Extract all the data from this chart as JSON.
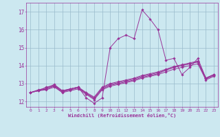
{
  "xlabel": "Windchill (Refroidissement éolien,°C)",
  "background_color": "#cce8f0",
  "grid_color": "#99bbcc",
  "line_color": "#993399",
  "xlim": [
    -0.5,
    23.5
  ],
  "ylim": [
    11.7,
    17.5
  ],
  "yticks": [
    12,
    13,
    14,
    15,
    16,
    17
  ],
  "xticks": [
    0,
    1,
    2,
    3,
    4,
    5,
    6,
    7,
    8,
    9,
    10,
    11,
    12,
    13,
    14,
    15,
    16,
    17,
    18,
    19,
    20,
    21,
    22,
    23
  ],
  "series": [
    {
      "x": [
        0,
        1,
        2,
        3,
        4,
        5,
        6,
        7,
        8,
        9,
        10,
        11,
        12,
        13,
        14,
        15,
        16,
        17,
        18,
        19,
        20,
        21,
        22,
        23
      ],
      "y": [
        12.5,
        12.6,
        12.8,
        12.9,
        12.5,
        12.7,
        12.8,
        12.2,
        11.9,
        12.2,
        15.0,
        15.5,
        15.7,
        15.5,
        17.1,
        16.6,
        16.0,
        14.3,
        14.4,
        13.5,
        13.9,
        14.4,
        13.3,
        13.5
      ]
    },
    {
      "x": [
        0,
        1,
        2,
        3,
        4,
        5,
        6,
        7,
        8,
        9,
        10,
        11,
        12,
        13,
        14,
        15,
        16,
        17,
        18,
        19,
        20,
        21,
        22,
        23
      ],
      "y": [
        12.5,
        12.6,
        12.7,
        12.85,
        12.55,
        12.65,
        12.75,
        12.45,
        12.2,
        12.7,
        12.9,
        13.0,
        13.1,
        13.2,
        13.35,
        13.45,
        13.55,
        13.75,
        13.9,
        14.0,
        14.1,
        14.2,
        13.25,
        13.45
      ]
    },
    {
      "x": [
        0,
        1,
        2,
        3,
        4,
        5,
        6,
        7,
        8,
        9,
        10,
        11,
        12,
        13,
        14,
        15,
        16,
        17,
        18,
        19,
        20,
        21,
        22,
        23
      ],
      "y": [
        12.5,
        12.6,
        12.65,
        12.8,
        12.5,
        12.6,
        12.7,
        12.4,
        12.1,
        12.65,
        12.85,
        12.95,
        13.05,
        13.15,
        13.3,
        13.4,
        13.5,
        13.65,
        13.8,
        13.9,
        14.0,
        14.1,
        13.2,
        13.4
      ]
    },
    {
      "x": [
        0,
        1,
        2,
        3,
        4,
        5,
        6,
        7,
        8,
        9,
        10,
        11,
        12,
        13,
        14,
        15,
        16,
        17,
        18,
        19,
        20,
        21,
        22,
        23
      ],
      "y": [
        12.5,
        12.6,
        12.7,
        12.9,
        12.6,
        12.7,
        12.8,
        12.45,
        12.15,
        12.75,
        12.95,
        13.05,
        13.15,
        13.25,
        13.4,
        13.5,
        13.6,
        13.75,
        13.9,
        14.0,
        14.1,
        14.2,
        13.3,
        13.5
      ]
    },
    {
      "x": [
        0,
        1,
        2,
        3,
        4,
        5,
        6,
        7,
        8,
        9,
        10,
        11,
        12,
        13,
        14,
        15,
        16,
        17,
        18,
        19,
        20,
        21,
        22,
        23
      ],
      "y": [
        12.5,
        12.65,
        12.75,
        12.95,
        12.6,
        12.7,
        12.8,
        12.5,
        12.25,
        12.8,
        13.0,
        13.1,
        13.2,
        13.3,
        13.45,
        13.55,
        13.65,
        13.8,
        13.95,
        14.05,
        14.15,
        14.25,
        13.3,
        13.5
      ]
    }
  ]
}
